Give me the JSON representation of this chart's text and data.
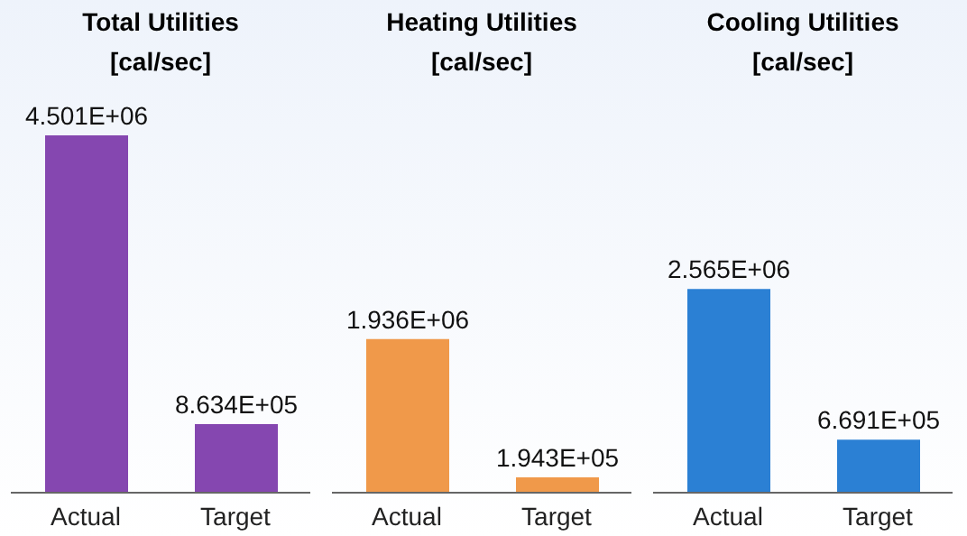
{
  "chart_data": [
    {
      "type": "bar",
      "title": "Total Utilities",
      "subtitle": "[cal/sec]",
      "categories": [
        "Actual",
        "Target"
      ],
      "values": [
        4501000,
        863400
      ],
      "value_labels": [
        "4.501E+06",
        "8.634E+05"
      ],
      "color": "#8547b0",
      "tick_labels": "x",
      "grid": false,
      "legend": false
    },
    {
      "type": "bar",
      "title": "Heating Utilities",
      "subtitle": "[cal/sec]",
      "categories": [
        "Actual",
        "Target"
      ],
      "values": [
        1936000,
        194300
      ],
      "value_labels": [
        "1.936E+06",
        "1.943E+05"
      ],
      "color": "#f0994a",
      "tick_labels": "x",
      "grid": false,
      "legend": false
    },
    {
      "type": "bar",
      "title": "Cooling Utilities",
      "subtitle": "[cal/sec]",
      "categories": [
        "Actual",
        "Target"
      ],
      "values": [
        2565000,
        669100
      ],
      "value_labels": [
        "2.565E+06",
        "6.691E+05"
      ],
      "color": "#2b80d4",
      "tick_labels": "x",
      "grid": false,
      "legend": false
    }
  ]
}
